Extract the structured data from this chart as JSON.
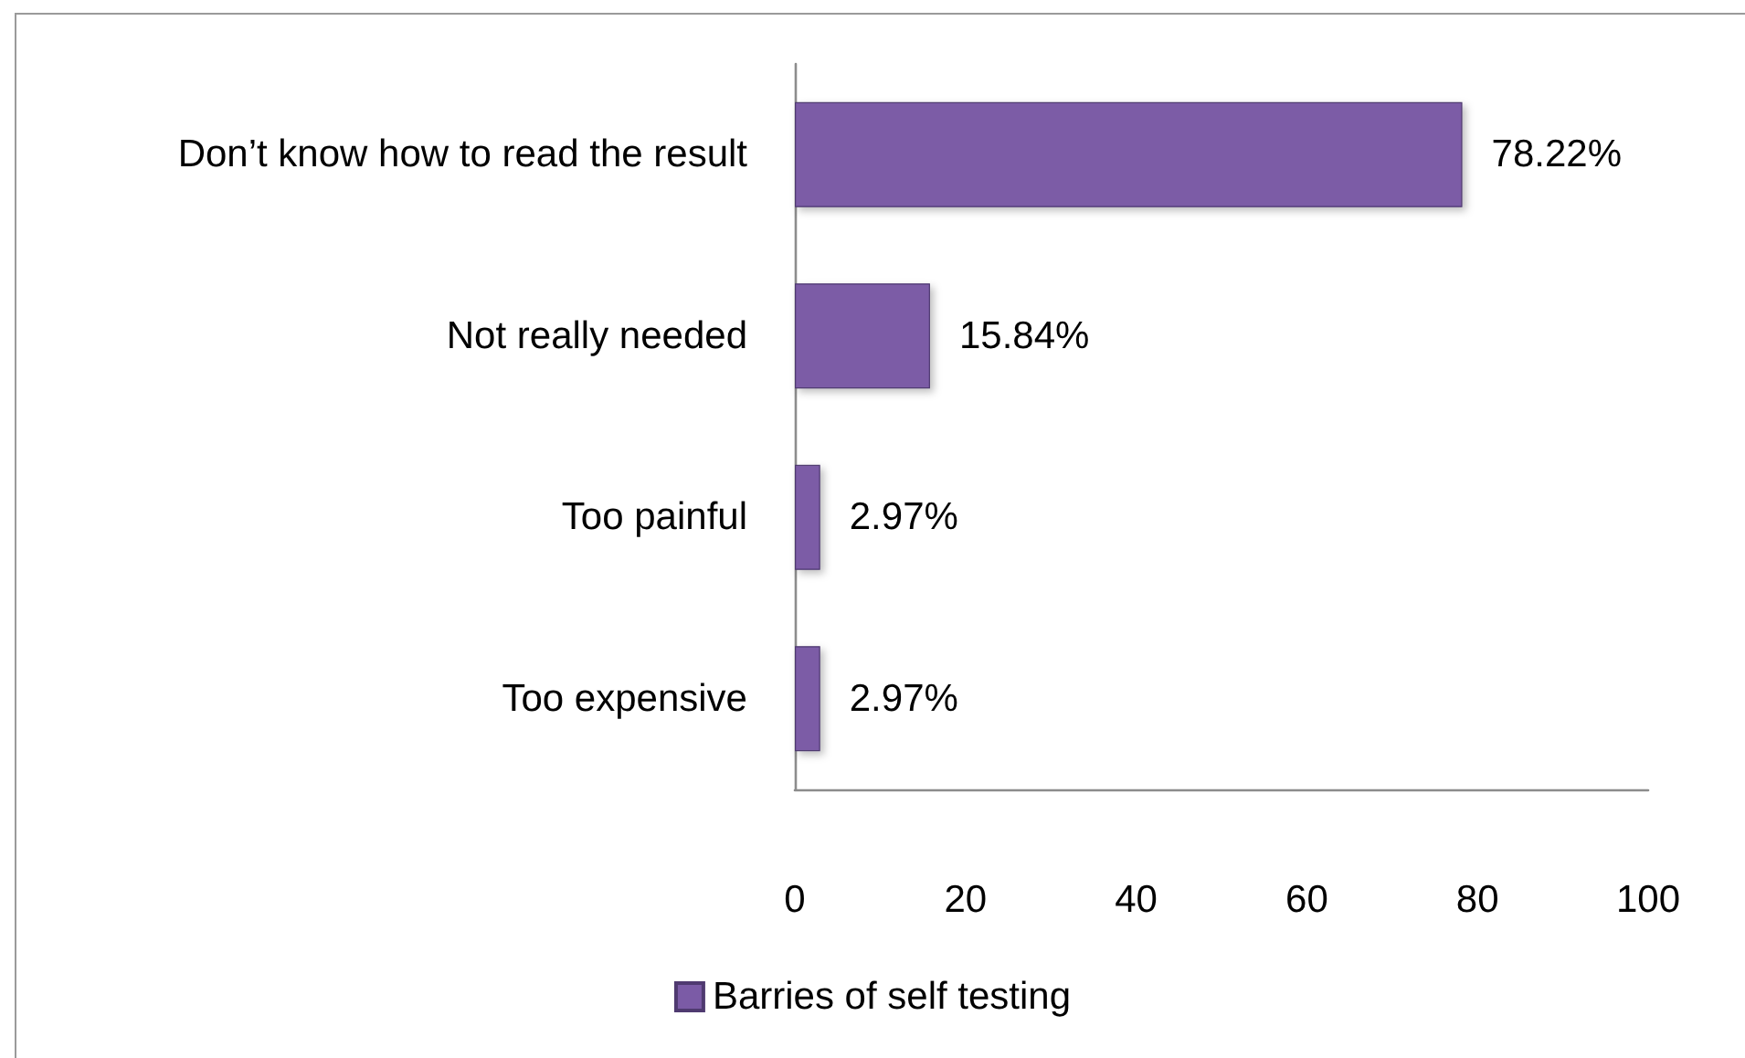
{
  "chart_data": {
    "type": "bar",
    "orientation": "horizontal",
    "categories": [
      "Don’t know how to read the result",
      "Not really needed",
      "Too painful",
      "Too expensive"
    ],
    "series": [
      {
        "name": "Barries of self testing",
        "color": "#7b5ba6",
        "values": [
          78.22,
          15.84,
          2.97,
          2.97
        ],
        "value_labels": [
          "78.22%",
          "15.84%",
          "2.97%",
          "2.97%"
        ]
      }
    ],
    "xlim": [
      0,
      100
    ],
    "xticks": [
      0,
      20,
      40,
      60,
      80,
      100
    ],
    "legend": "bottom"
  }
}
